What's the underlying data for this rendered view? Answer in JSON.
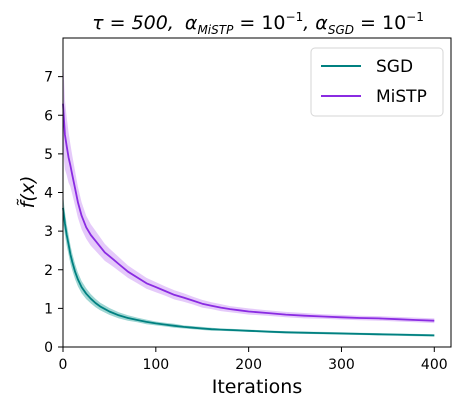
{
  "chart_data": {
    "type": "line",
    "title": {
      "tau_label": "τ = 500,",
      "alpha_mistp_label": "α",
      "alpha_mistp_sub": "MiSTP",
      "alpha_mistp_value": " = 10",
      "alpha_mistp_exp": "−1",
      "alpha_sgd_label": ", α",
      "alpha_sgd_sub": "SGD",
      "alpha_sgd_value": " = 10",
      "alpha_sgd_exp": "−1"
    },
    "xlabel": "Iterations",
    "ylabel": "f̃(x)",
    "xlim": [
      0,
      418
    ],
    "ylim": [
      0,
      8
    ],
    "xticks": [
      "0",
      "100",
      "200",
      "300",
      "400"
    ],
    "xtick_values": [
      0,
      100,
      200,
      300,
      400
    ],
    "yticks": [
      "0",
      "1",
      "2",
      "3",
      "4",
      "5",
      "6",
      "7"
    ],
    "ytick_values": [
      0,
      1,
      2,
      3,
      4,
      5,
      6,
      7
    ],
    "legend_position": "top-right",
    "series": [
      {
        "name": "SGD",
        "color": "#008080",
        "band_color": "#7fc8c4",
        "x": [
          0,
          2,
          4,
          6,
          8,
          10,
          13,
          16,
          20,
          25,
          30,
          35,
          40,
          50,
          60,
          70,
          80,
          90,
          100,
          110,
          120,
          130,
          140,
          150,
          160,
          170,
          180,
          190,
          200,
          220,
          240,
          260,
          280,
          300,
          320,
          340,
          360,
          380,
          400
        ],
        "y": [
          3.6,
          3.2,
          2.9,
          2.65,
          2.4,
          2.2,
          1.95,
          1.75,
          1.55,
          1.38,
          1.25,
          1.14,
          1.05,
          0.92,
          0.82,
          0.75,
          0.7,
          0.65,
          0.61,
          0.58,
          0.55,
          0.52,
          0.5,
          0.48,
          0.46,
          0.45,
          0.44,
          0.43,
          0.42,
          0.4,
          0.38,
          0.37,
          0.36,
          0.35,
          0.34,
          0.33,
          0.32,
          0.31,
          0.3
        ],
        "band": [
          0.35,
          0.3,
          0.28,
          0.26,
          0.24,
          0.22,
          0.2,
          0.18,
          0.16,
          0.14,
          0.12,
          0.11,
          0.1,
          0.09,
          0.08,
          0.07,
          0.06,
          0.06,
          0.05,
          0.05,
          0.05,
          0.04,
          0.04,
          0.04,
          0.04,
          0.03,
          0.03,
          0.03,
          0.03,
          0.03,
          0.03,
          0.03,
          0.03,
          0.03,
          0.03,
          0.03,
          0.03,
          0.03,
          0.03
        ]
      },
      {
        "name": "MiSTP",
        "color": "#8a2be2",
        "band_color": "#dcb8f8",
        "x": [
          0,
          2,
          4,
          6,
          8,
          10,
          13,
          16,
          20,
          25,
          30,
          35,
          40,
          45,
          50,
          55,
          60,
          70,
          80,
          90,
          100,
          110,
          120,
          130,
          140,
          150,
          160,
          170,
          180,
          190,
          200,
          220,
          240,
          260,
          280,
          300,
          320,
          340,
          360,
          380,
          400
        ],
        "y": [
          6.3,
          5.5,
          5.2,
          4.9,
          4.7,
          4.45,
          4.1,
          3.75,
          3.4,
          3.1,
          2.9,
          2.75,
          2.6,
          2.45,
          2.35,
          2.25,
          2.15,
          1.95,
          1.8,
          1.65,
          1.55,
          1.45,
          1.35,
          1.28,
          1.2,
          1.12,
          1.07,
          1.02,
          0.98,
          0.95,
          0.92,
          0.88,
          0.84,
          0.81,
          0.79,
          0.77,
          0.75,
          0.74,
          0.72,
          0.7,
          0.68
        ],
        "band": [
          1.2,
          0.9,
          0.75,
          0.65,
          0.55,
          0.5,
          0.45,
          0.4,
          0.35,
          0.3,
          0.28,
          0.26,
          0.24,
          0.22,
          0.2,
          0.19,
          0.18,
          0.16,
          0.15,
          0.14,
          0.13,
          0.12,
          0.12,
          0.11,
          0.1,
          0.1,
          0.09,
          0.09,
          0.08,
          0.08,
          0.08,
          0.07,
          0.07,
          0.07,
          0.06,
          0.06,
          0.06,
          0.06,
          0.06,
          0.06,
          0.06
        ]
      }
    ]
  }
}
